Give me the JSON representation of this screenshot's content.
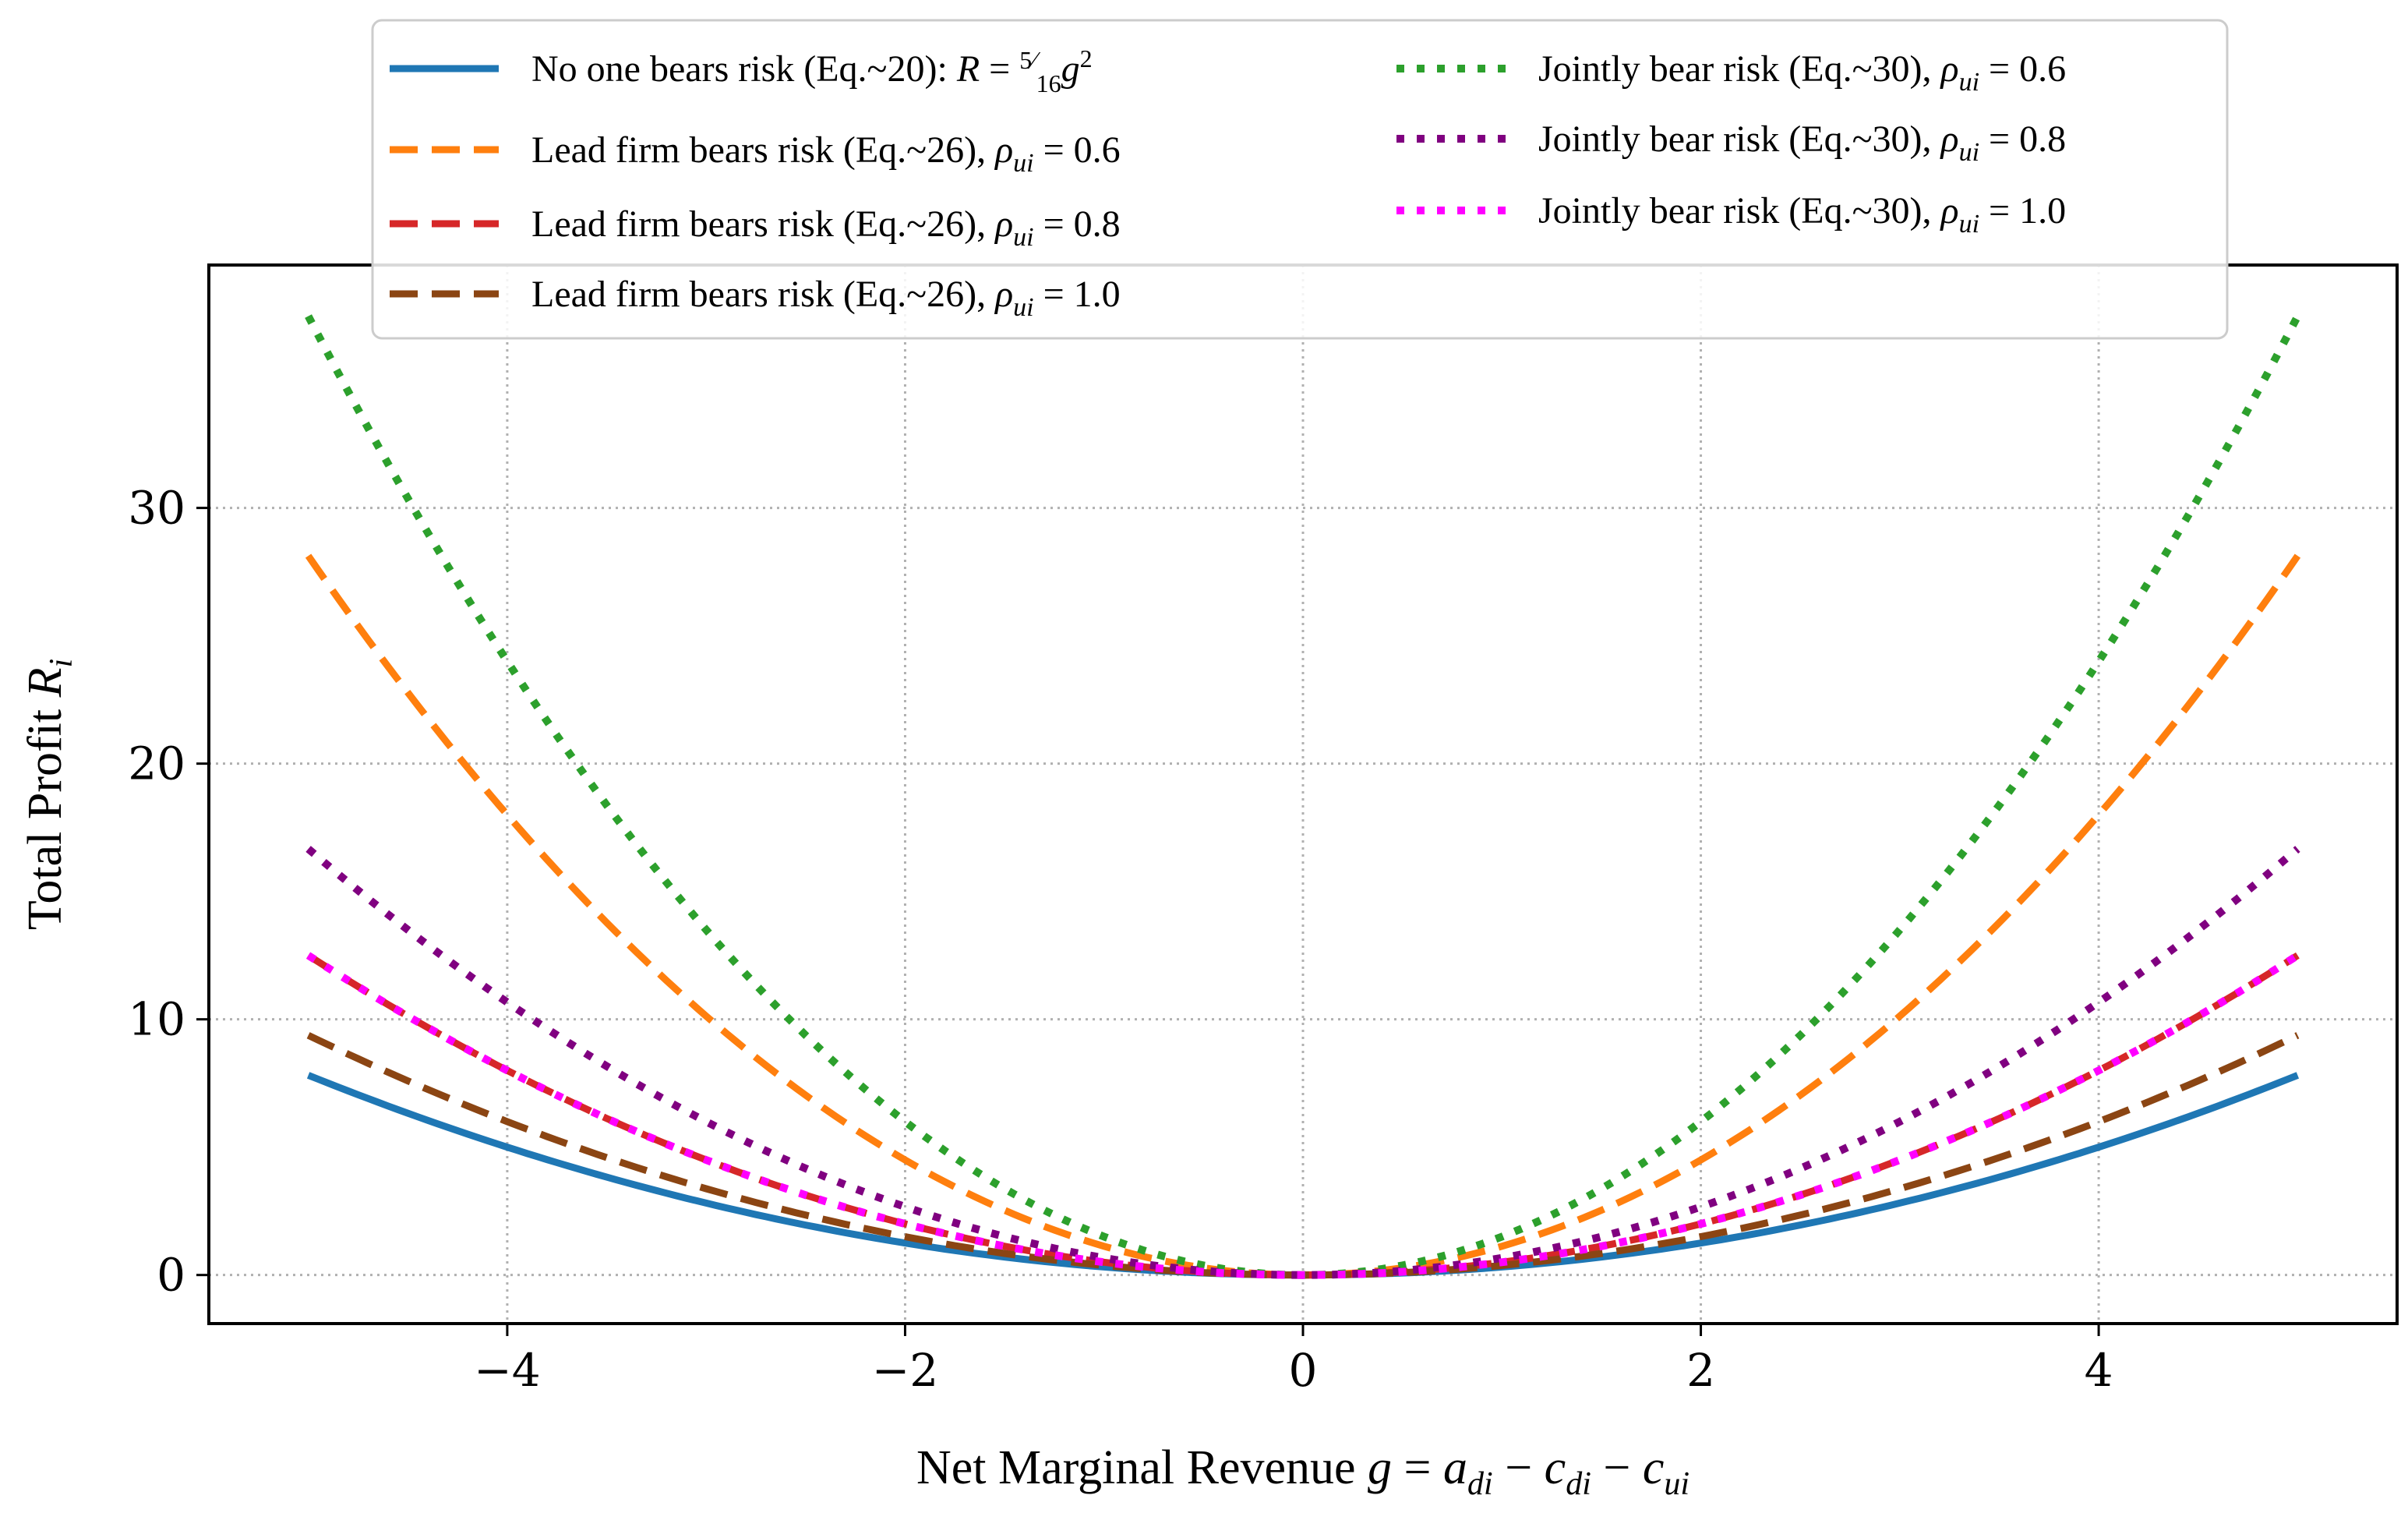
{
  "chart_data": {
    "type": "line",
    "title": "",
    "xlabel": "Net Marginal Revenue g = a_di − c_di − c_ui",
    "ylabel": "Total Profit R_i",
    "xlim": [
      -5.5,
      5.5
    ],
    "ylim": [
      -1.9,
      39.5
    ],
    "xticks": [
      -4,
      -2,
      0,
      2,
      4
    ],
    "yticks": [
      0,
      10,
      20,
      30
    ],
    "xtick_labels": [
      "−4",
      "−2",
      "0",
      "2",
      "4"
    ],
    "ytick_labels": [
      "0",
      "10",
      "20",
      "30"
    ],
    "grid": true,
    "legend_position": "top-center",
    "x_domain": [
      -5,
      5
    ],
    "series": [
      {
        "name": "No one bears risk (Eq.~20):",
        "formula": "R = 5/16 g²",
        "coef": 0.3125,
        "color": "#1f77b4",
        "style": "solid"
      },
      {
        "name": "Lead firm bears risk (Eq.~26),",
        "rho": "0.6",
        "coef": 1.125,
        "color": "#ff7f0e",
        "style": "dashed"
      },
      {
        "name": "Lead firm bears risk (Eq.~26),",
        "rho": "0.8",
        "coef": 0.5,
        "color": "#d62728",
        "style": "dashed"
      },
      {
        "name": "Lead firm bears risk (Eq.~26),",
        "rho": "1.0",
        "coef": 0.375,
        "color": "#8b4513",
        "style": "dashed"
      },
      {
        "name": "Jointly bear risk (Eq.~30),",
        "rho": "0.6",
        "coef": 1.5,
        "color": "#2ca02c",
        "style": "dotted"
      },
      {
        "name": "Jointly bear risk (Eq.~30),",
        "rho": "0.8",
        "coef": 0.6667,
        "color": "#800080",
        "style": "dotted"
      },
      {
        "name": "Jointly bear risk (Eq.~30),",
        "rho": "1.0",
        "coef": 0.5,
        "color": "#ff00ff",
        "style": "dotted"
      }
    ]
  }
}
